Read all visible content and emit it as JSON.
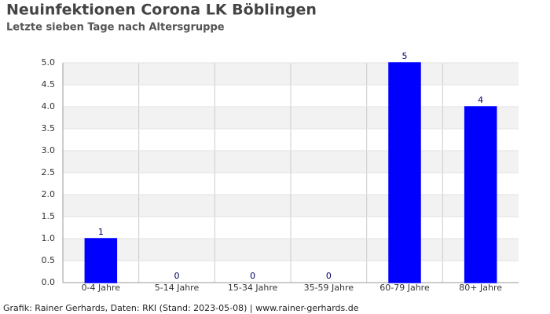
{
  "chart_data": {
    "type": "bar",
    "title": "Neuinfektionen Corona LK Böblingen",
    "subtitle": "Letzte sieben Tage nach Altersgruppe",
    "categories": [
      "0-4 Jahre",
      "5-14 Jahre",
      "15-34 Jahre",
      "35-59 Jahre",
      "60-79 Jahre",
      "80+ Jahre"
    ],
    "values": [
      1,
      0,
      0,
      0,
      5,
      4
    ],
    "color": "#0000ff",
    "ylim": [
      0,
      5
    ],
    "yticks": [
      {
        "value": 0,
        "label": "0.0"
      },
      {
        "value": 0.5,
        "label": "0.5"
      },
      {
        "value": 1,
        "label": "1.0"
      },
      {
        "value": 1.5,
        "label": "1.5"
      },
      {
        "value": 2,
        "label": "2.0"
      },
      {
        "value": 2.5,
        "label": "2.5"
      },
      {
        "value": 3,
        "label": "3.0"
      },
      {
        "value": 3.5,
        "label": "3.5"
      },
      {
        "value": 4,
        "label": "4.0"
      },
      {
        "value": 4.5,
        "label": "4.5"
      },
      {
        "value": 5,
        "label": "5.0"
      }
    ],
    "grid": true,
    "source": "Grafik: Rainer Gerhards, Daten: RKI (Stand: 2023-05-08) | www.rainer-gerhards.de"
  }
}
